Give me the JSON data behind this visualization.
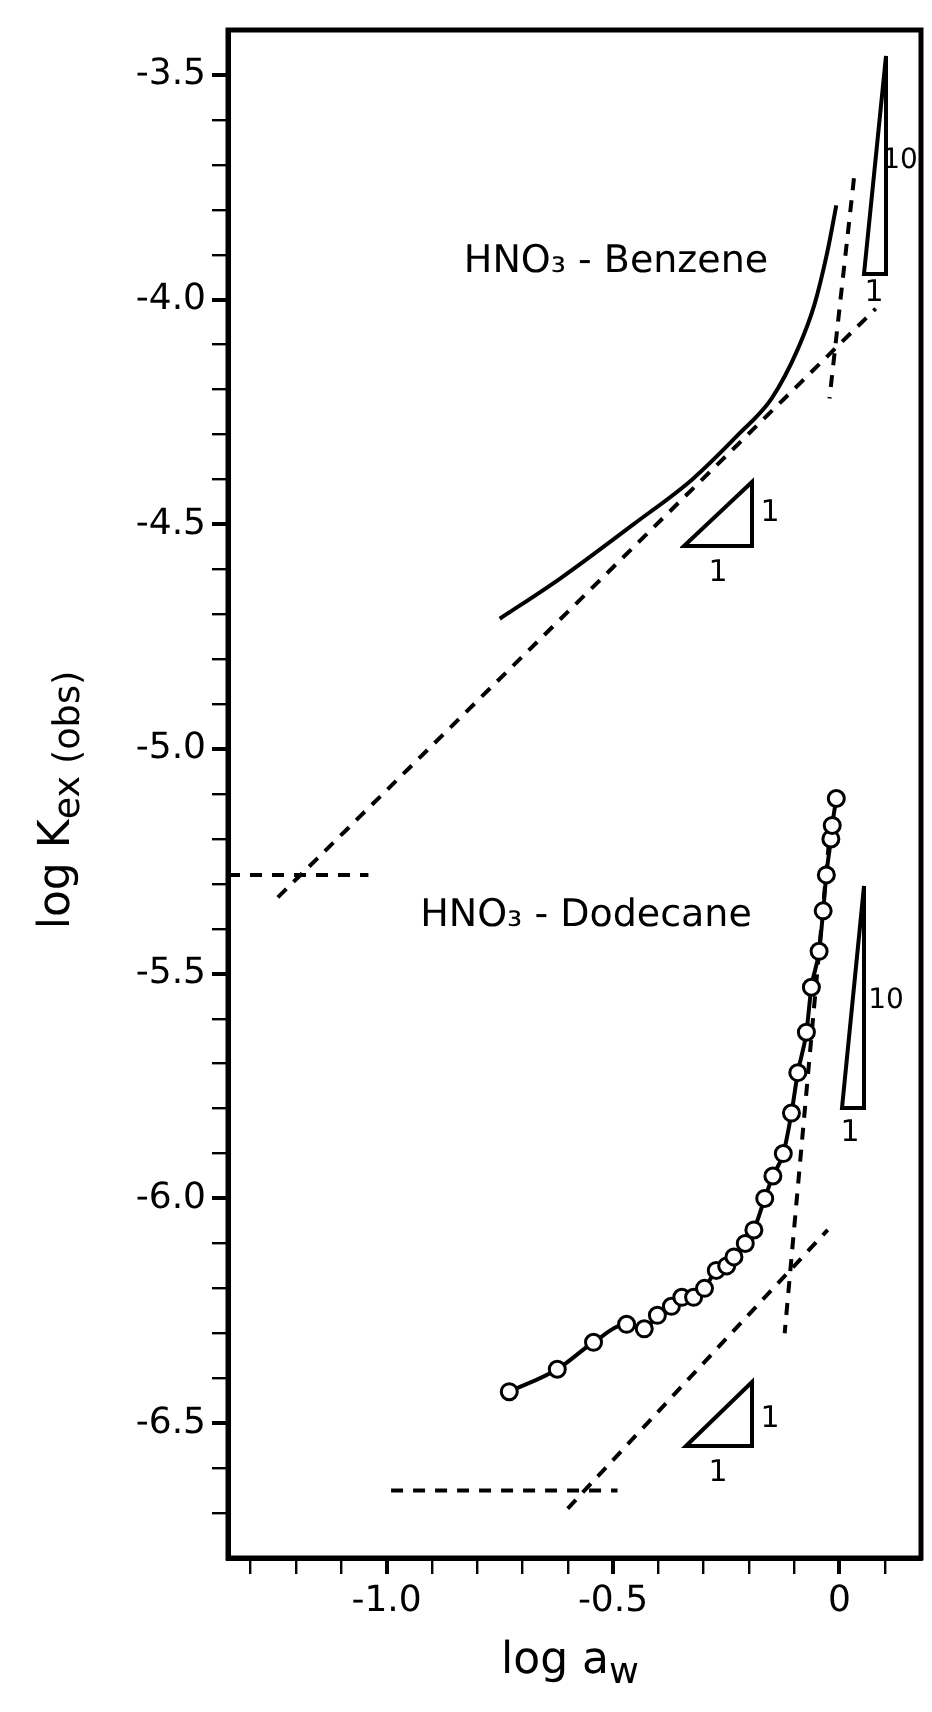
{
  "chart_data": {
    "type": "line",
    "xlabel": "log a$_{w}$",
    "ylabel": "log K$_{ex (obs)}$",
    "xlim": [
      -1.35,
      0.18
    ],
    "ylim": [
      -6.8,
      -3.4
    ],
    "xticks": [
      {
        "value": -1.3,
        "label": null
      },
      {
        "value": -1.2,
        "label": null
      },
      {
        "value": -1.1,
        "label": null
      },
      {
        "value": -1,
        "label": "-1.0"
      },
      {
        "value": -0.9,
        "label": null
      },
      {
        "value": -0.8,
        "label": null
      },
      {
        "value": -0.7,
        "label": null
      },
      {
        "value": -0.6,
        "label": null
      },
      {
        "value": -0.5,
        "label": "-0.5"
      },
      {
        "value": -0.4,
        "label": null
      },
      {
        "value": -0.3,
        "label": null
      },
      {
        "value": -0.2,
        "label": null
      },
      {
        "value": -0.1,
        "label": null
      },
      0,
      {
        "value": 0.1,
        "label": null
      }
    ],
    "yticks": [
      {
        "value": -3.5,
        "label": "-3.5"
      },
      {
        "value": -3.6,
        "label": null
      },
      {
        "value": -3.7,
        "label": null
      },
      {
        "value": -3.8,
        "label": null
      },
      {
        "value": -3.9,
        "label": null
      },
      {
        "value": -4,
        "label": "-4.0"
      },
      {
        "value": -4.1,
        "label": null
      },
      {
        "value": -4.2,
        "label": null
      },
      {
        "value": -4.3,
        "label": null
      },
      {
        "value": -4.4,
        "label": null
      },
      {
        "value": -4.5,
        "label": "-4.5"
      },
      {
        "value": -4.6,
        "label": null
      },
      {
        "value": -4.7,
        "label": null
      },
      {
        "value": -4.8,
        "label": null
      },
      {
        "value": -4.9,
        "label": null
      },
      {
        "value": -5,
        "label": "-5.0"
      },
      {
        "value": -5.1,
        "label": null
      },
      {
        "value": -5.2,
        "label": null
      },
      {
        "value": -5.3,
        "label": null
      },
      {
        "value": -5.4,
        "label": null
      },
      {
        "value": -5.5,
        "label": "-5.5"
      },
      {
        "value": -5.6,
        "label": null
      },
      {
        "value": -5.7,
        "label": null
      },
      {
        "value": -5.8,
        "label": null
      },
      {
        "value": -5.9,
        "label": null
      },
      {
        "value": -6,
        "label": "-6.0"
      },
      {
        "value": -6.1,
        "label": null
      },
      {
        "value": -6.2,
        "label": null
      },
      {
        "value": -6.3,
        "label": null
      },
      {
        "value": -6.4,
        "label": null
      },
      {
        "value": -6.5,
        "label": "-6.5"
      },
      {
        "value": -6.6,
        "label": null
      },
      {
        "value": -6.7,
        "label": null
      }
    ],
    "grid": false,
    "legend": false,
    "series": [
      {
        "name": "HNO₃ - Benzene",
        "color": "#000000",
        "marker": "none",
        "line_style": "solid",
        "x": [
          -0.75,
          -0.616,
          -0.455,
          -0.325,
          -0.223,
          -0.15,
          -0.092,
          -0.055,
          -0.026,
          -0.007
        ],
        "values": [
          -4.71,
          -4.62,
          -4.5,
          -4.4,
          -4.3,
          -4.22,
          -4.11,
          -4.01,
          -3.89,
          -3.79
        ]
      },
      {
        "name": "HNO₃ - Dodecane",
        "color": "#000000",
        "marker": "circle",
        "line_style": "solid",
        "x": [
          -0.729,
          -0.623,
          -0.543,
          -0.47,
          -0.431,
          -0.402,
          -0.371,
          -0.348,
          -0.322,
          -0.298,
          -0.272,
          -0.249,
          -0.233,
          -0.208,
          -0.189,
          -0.165,
          -0.147,
          -0.124,
          -0.106,
          -0.092,
          -0.073,
          -0.062,
          -0.045,
          -0.036,
          -0.029,
          -0.019,
          -0.016,
          -0.007
        ],
        "values": [
          -6.43,
          -6.38,
          -6.32,
          -6.28,
          -6.29,
          -6.26,
          -6.24,
          -6.22,
          -6.22,
          -6.2,
          -6.16,
          -6.15,
          -6.13,
          -6.1,
          -6.07,
          -6.0,
          -5.95,
          -5.9,
          -5.81,
          -5.72,
          -5.63,
          -5.53,
          -5.45,
          -5.36,
          -5.28,
          -5.2,
          -5.17,
          -5.11
        ]
      },
      {
        "color": "#000000",
        "marker": "none",
        "line_style": "dashed",
        "x": [
          -1.24,
          0.08
        ],
        "values": [
          -5.33,
          -4.02
        ]
      },
      {
        "color": "#000000",
        "marker": "none",
        "line_style": "dashed",
        "x": [
          0.032,
          -0.022
        ],
        "values": [
          -3.73,
          -4.22
        ]
      },
      {
        "color": "#000000",
        "marker": "none",
        "line_style": "dashed",
        "x": [
          -1.35,
          -1.04
        ],
        "values": [
          -5.28,
          -5.28
        ]
      },
      {
        "color": "#000000",
        "marker": "none",
        "line_style": "dashed",
        "x": [
          -0.6,
          -0.026
        ],
        "values": [
          -6.69,
          -6.07
        ]
      },
      {
        "color": "#000000",
        "marker": "none",
        "line_style": "dashed",
        "x": [
          -0.019,
          -0.121
        ],
        "values": [
          -5.16,
          -6.3
        ]
      },
      {
        "color": "#000000",
        "marker": "none",
        "line_style": "dashed",
        "x": [
          -0.99,
          -0.49
        ],
        "values": [
          -6.65,
          -6.65
        ]
      }
    ],
    "annotations": [
      "1",
      "1",
      "10",
      "1",
      "10",
      "1",
      "1",
      "1"
    ]
  }
}
